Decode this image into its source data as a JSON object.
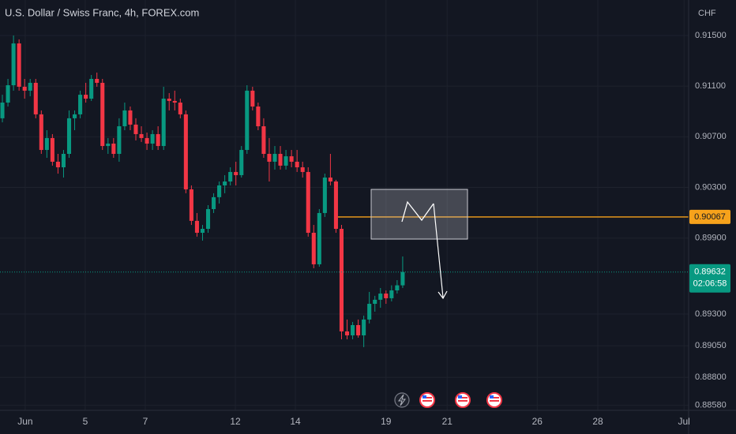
{
  "chart_data": {
    "type": "candlestick",
    "title": "U.S. Dollar / Swiss Franc, 4h, FOREX.com",
    "y_axis_label": "CHF",
    "up_color": "#089981",
    "down_color": "#f23645",
    "open": [
      0.90846,
      0.9097,
      0.91107,
      0.91437,
      0.91095,
      0.91064,
      0.91126,
      0.90877,
      0.90596,
      0.9069,
      0.90503,
      0.90459,
      0.90565,
      0.90846,
      0.90877,
      0.91032,
      0.91001,
      0.91157,
      0.91126,
      0.90627,
      0.90646,
      0.90565,
      0.90783,
      0.90908,
      0.90796,
      0.90721,
      0.9069,
      0.90646,
      0.90721,
      0.90627,
      0.91001,
      0.90983,
      0.9097,
      0.90877,
      0.90285,
      0.90036,
      0.89942,
      0.89973,
      0.90129,
      0.90223,
      0.90316,
      0.90347,
      0.90422,
      0.90397,
      0.90596,
      0.91064,
      0.90939,
      0.90783,
      0.90565,
      0.90503,
      0.90565,
      0.90472,
      0.90546,
      0.90503,
      0.90459,
      0.90422,
      0.89942,
      0.89693,
      0.90098,
      0.90378,
      0.90347,
      0.89973,
      0.89163,
      0.89132,
      0.89213,
      0.89132,
      0.89257,
      0.89381,
      0.89413,
      0.89462,
      0.89425,
      0.89487,
      0.89527
    ],
    "high": [
      0.91032,
      0.91157,
      0.915,
      0.91469,
      0.91157,
      0.91157,
      0.91157,
      0.90908,
      0.90752,
      0.90721,
      0.90565,
      0.90596,
      0.90908,
      0.90908,
      0.91064,
      0.91126,
      0.91188,
      0.91207,
      0.91157,
      0.9069,
      0.9069,
      0.90846,
      0.9097,
      0.90939,
      0.90846,
      0.90783,
      0.90733,
      0.90752,
      0.90783,
      0.91095,
      0.91045,
      0.91064,
      0.91001,
      0.90908,
      0.90316,
      0.90098,
      0.90004,
      0.9016,
      0.90254,
      0.90347,
      0.90397,
      0.90459,
      0.90503,
      0.90627,
      0.91107,
      0.91095,
      0.9097,
      0.90846,
      0.9069,
      0.90627,
      0.90627,
      0.90596,
      0.90596,
      0.90596,
      0.90503,
      0.90459,
      0.90004,
      0.90129,
      0.90409,
      0.90565,
      0.9036,
      0.90004,
      0.89257,
      0.89238,
      0.89257,
      0.89288,
      0.89475,
      0.89444,
      0.89506,
      0.89487,
      0.89527,
      0.89568,
      0.89755
    ],
    "low": [
      0.90814,
      0.90939,
      0.91064,
      0.91064,
      0.91001,
      0.9102,
      0.90846,
      0.90565,
      0.90534,
      0.90472,
      0.90409,
      0.90378,
      0.90534,
      0.90752,
      0.90846,
      0.9097,
      0.90983,
      0.91095,
      0.90596,
      0.90565,
      0.90534,
      0.90503,
      0.90752,
      0.90752,
      0.90671,
      0.90659,
      0.90596,
      0.90596,
      0.90596,
      0.90596,
      0.90908,
      0.90908,
      0.90846,
      0.90254,
      0.90004,
      0.89911,
      0.8988,
      0.89942,
      0.90098,
      0.90173,
      0.90254,
      0.90316,
      0.90316,
      0.90378,
      0.90565,
      0.90908,
      0.90752,
      0.90534,
      0.90347,
      0.90441,
      0.90441,
      0.90441,
      0.90459,
      0.90422,
      0.90378,
      0.89911,
      0.89662,
      0.89674,
      0.90067,
      0.90316,
      0.89942,
      0.89101,
      0.89101,
      0.89101,
      0.89114,
      0.89039,
      0.89226,
      0.89319,
      0.8935,
      0.89381,
      0.894,
      0.89462,
      0.89506
    ],
    "close": [
      0.9097,
      0.91107,
      0.91437,
      0.91095,
      0.91064,
      0.91126,
      0.90877,
      0.90596,
      0.9069,
      0.90503,
      0.90459,
      0.90565,
      0.90846,
      0.90877,
      0.91032,
      0.91001,
      0.91157,
      0.91126,
      0.90627,
      0.90646,
      0.90565,
      0.90783,
      0.90908,
      0.90796,
      0.90721,
      0.9069,
      0.90646,
      0.90721,
      0.90627,
      0.91001,
      0.90983,
      0.9097,
      0.90877,
      0.90285,
      0.90036,
      0.89942,
      0.89973,
      0.90129,
      0.90223,
      0.90316,
      0.90347,
      0.90422,
      0.90397,
      0.90596,
      0.91064,
      0.90939,
      0.90783,
      0.90565,
      0.90503,
      0.90565,
      0.90472,
      0.90546,
      0.90503,
      0.90459,
      0.90422,
      0.89942,
      0.89693,
      0.90098,
      0.90378,
      0.90347,
      0.89973,
      0.89163,
      0.89132,
      0.89213,
      0.89132,
      0.89257,
      0.89381,
      0.89413,
      0.89462,
      0.89425,
      0.89487,
      0.89527,
      0.89632
    ],
    "xlim": [
      -0.43,
      123.43
    ],
    "xticks": [
      {
        "value": 4.1,
        "label": "Jun"
      },
      {
        "value": 14.9,
        "label": "5"
      },
      {
        "value": 25.7,
        "label": "7"
      },
      {
        "value": 41.9,
        "label": "12"
      },
      {
        "value": 52.7,
        "label": "14"
      },
      {
        "value": 69,
        "label": "19"
      },
      {
        "value": 80,
        "label": "21"
      },
      {
        "value": 96.2,
        "label": "26"
      },
      {
        "value": 107.1,
        "label": "28"
      },
      {
        "value": 122.6,
        "label": "Jul"
      }
    ],
    "ylim": [
      0.8854,
      0.9178
    ],
    "yticks": [
      {
        "value": 0.915,
        "label": "0.91500"
      },
      {
        "value": 0.911,
        "label": "0.91100"
      },
      {
        "value": 0.907,
        "label": "0.90700"
      },
      {
        "value": 0.903,
        "label": "0.90300"
      },
      {
        "value": 0.899,
        "label": "0.89900"
      },
      {
        "value": 0.893,
        "label": "0.89300"
      },
      {
        "value": 0.8905,
        "label": "0.89050"
      },
      {
        "value": 0.888,
        "label": "0.88800"
      },
      {
        "value": 0.8858,
        "label": "0.88580"
      }
    ],
    "grid": true,
    "price_line": {
      "value": 0.90067,
      "color": "#f7a21b"
    },
    "last_price": {
      "value": 0.89632,
      "countdown": "02:06:58",
      "color": "#089981"
    }
  }
}
